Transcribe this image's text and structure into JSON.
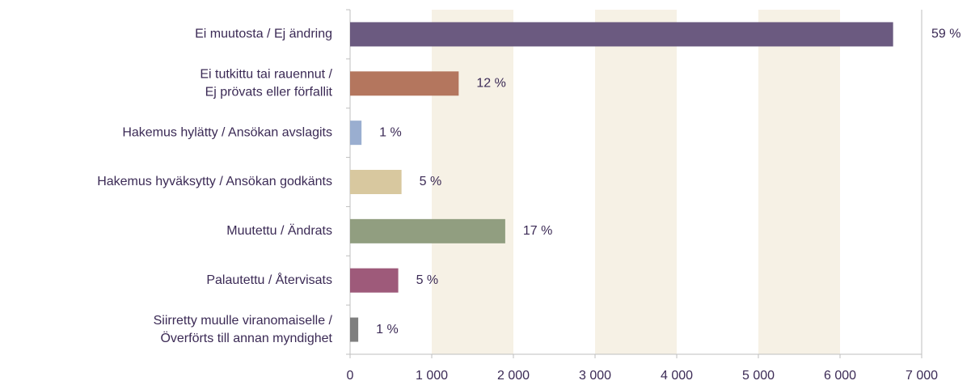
{
  "chart_data": {
    "type": "barh",
    "categories": [
      [
        "Ei muutosta / Ej ändring"
      ],
      [
        "Ei tutkittu tai rauennut /",
        "Ej prövats eller förfallit"
      ],
      [
        "Hakemus hylätty / Ansökan avslagits"
      ],
      [
        "Hakemus hyväksytty / Ansökan godkänts"
      ],
      [
        "Muutettu / Ändrats"
      ],
      [
        "Palautettu / Återvisats"
      ],
      [
        "Siirretty muulle viranomaiselle /",
        "Överförts till annan myndighet"
      ]
    ],
    "values": [
      6650,
      1330,
      140,
      630,
      1900,
      590,
      100
    ],
    "colors": [
      "#6b5a80",
      "#b4765e",
      "#9aaed0",
      "#d8c89f",
      "#919e80",
      "#9e5a7a",
      "#7f7f7f"
    ],
    "percentages": [
      59,
      12,
      1,
      5,
      17,
      5,
      1
    ],
    "percentage_labels": [
      "59 %",
      "12 %",
      "1 %",
      "5 %",
      "17 %",
      "5 %",
      "1 %"
    ],
    "xlim": [
      0,
      7000
    ],
    "xticks": [
      0,
      {
        "value": 1000,
        "label": "1 000"
      },
      {
        "value": 2000,
        "label": "2 000"
      },
      {
        "value": 3000,
        "label": "3 000"
      },
      {
        "value": 4000,
        "label": "4 000"
      },
      {
        "value": 5000,
        "label": "5 000"
      },
      {
        "value": 6000,
        "label": "6 000"
      },
      {
        "value": 7000,
        "label": "7 000"
      }
    ],
    "alternating_bands": true,
    "band_color": "#f6f1e5"
  }
}
